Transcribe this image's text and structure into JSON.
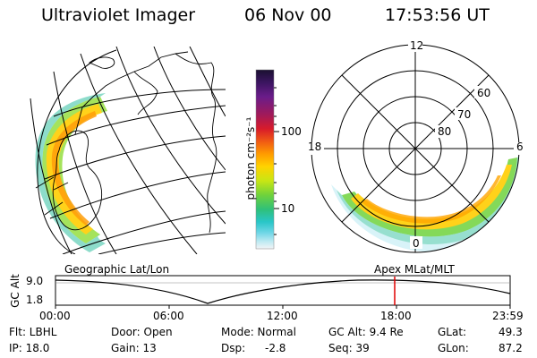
{
  "header": {
    "title": "Ultraviolet Imager",
    "date": "06 Nov 00",
    "time": "17:53:56 UT"
  },
  "colorbar": {
    "unit_label": "photon cm⁻²s⁻¹",
    "ticks": [
      "100",
      "10"
    ],
    "colors": [
      "#1a1030",
      "#3b1560",
      "#6a1c8a",
      "#a01a5a",
      "#d81b2a",
      "#f05a14",
      "#ff9b00",
      "#ffd200",
      "#c8e614",
      "#6fd23c",
      "#2fc07a",
      "#29c6c8",
      "#6fd6e6",
      "#bfeaf2",
      "#f2f4f6"
    ]
  },
  "geo_map": {
    "label": "Geographic Lat/Lon"
  },
  "polar_plot": {
    "label": "Apex MLat/MLT",
    "mlt_labels": {
      "top": "12",
      "left": "18",
      "right": "6",
      "bottom": "0"
    },
    "lat_labels": [
      "60",
      "70",
      "80"
    ]
  },
  "altitude_track": {
    "axis_title": "GC Alt",
    "y_ticks": [
      "9.0",
      "1.8"
    ],
    "x_ticks": [
      "00:00",
      "06:00",
      "12:00",
      "18:00",
      "23:59"
    ],
    "marker_color": "#e00000"
  },
  "info": {
    "filter": "Flt: LBHL",
    "ip": "IP: 18.0",
    "door": "Door: Open",
    "gain": "Gain: 13",
    "mode": "Mode: Normal",
    "dsp": "Dsp:",
    "dsp_value": "-2.8",
    "gc_alt": "GC Alt: 9.4 Re",
    "seq": "Seq: 39",
    "glat": "GLat:",
    "glat_value": "49.3",
    "glon": "GLon:",
    "glon_value": "87.2"
  }
}
